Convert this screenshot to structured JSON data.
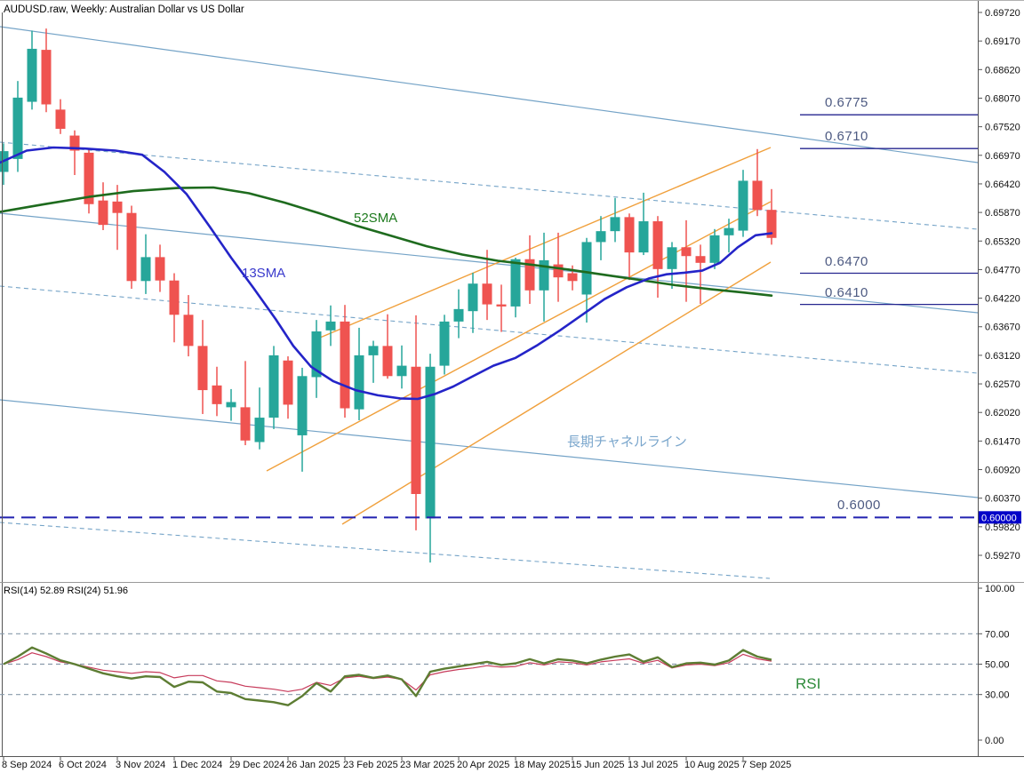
{
  "window": {
    "title": "AUDUSD.raw, Weekly:  Australian Dollar vs US Dollar"
  },
  "colors": {
    "background": "#ffffff",
    "bull_candle": "#26a69a",
    "bear_candle": "#ef5350",
    "sma13": "#2424c8",
    "sma52": "#1e6b1e",
    "channel_blue": "#74a3c7",
    "channel_orange": "#f0a03c",
    "level_navy": "#26268f",
    "level_dashed_navy": "#2222b0",
    "level_label": "#4d5a82",
    "channel_label": "#7aa6cc",
    "rsi14_line": "#5d7d33",
    "rsi24_line": "#c73b5b",
    "rsi_grid": "#8899aa",
    "price_tag_bg": "#0000c8",
    "price_tag_text": "#ffffff",
    "axis_text": "#111111",
    "border": "#555555"
  },
  "overlays": {
    "sma52_label": "52SMA",
    "sma13_label": "13SMA",
    "channel_label": "長期チャネルライン",
    "rsi_label": "RSI",
    "levels": [
      {
        "label": "0.6775",
        "price": 0.6775,
        "style": "solid",
        "full_width": false
      },
      {
        "label": "0.6710",
        "price": 0.671,
        "style": "solid",
        "full_width": false
      },
      {
        "label": "0.6470",
        "price": 0.647,
        "style": "solid",
        "full_width": false
      },
      {
        "label": "0.6410",
        "price": 0.641,
        "style": "solid",
        "full_width": false
      },
      {
        "label": "0.6000",
        "price": 0.6,
        "style": "dashed",
        "full_width": true
      }
    ],
    "price_tag": {
      "label": "0.60000",
      "price": 0.6
    }
  },
  "chart_data": {
    "type": "candlestick",
    "symbol": "AUDUSD.raw",
    "timeframe": "Weekly",
    "title": "AUDUSD.raw, Weekly:  Australian Dollar vs US Dollar",
    "price_axis": {
      "tick_labels": [
        "0.69720",
        "0.69170",
        "0.68620",
        "0.68070",
        "0.67520",
        "0.66970",
        "0.66420",
        "0.65870",
        "0.65320",
        "0.64770",
        "0.64220",
        "0.63670",
        "0.63120",
        "0.62570",
        "0.62020",
        "0.61470",
        "0.60920",
        "0.60370",
        "0.59820",
        "0.59270"
      ],
      "top": 0.6972,
      "bottom": 0.5927,
      "step": 0.0055
    },
    "x_axis": {
      "labels": [
        "8 Sep 2024",
        "6 Oct 2024",
        "3 Nov 2024",
        "1 Dec 2024",
        "29 Dec 2024",
        "26 Jan 2025",
        "23 Feb 2025",
        "23 Mar 2025",
        "20 Apr 2025",
        "18 May 2025",
        "15 Jun 2025",
        "13 Jul 2025",
        "10 Aug 2025",
        "7 Sep 2025"
      ],
      "candles_per_label": 4
    },
    "candles_ohlc": [
      [
        0.6665,
        0.672,
        0.664,
        0.6705
      ],
      [
        0.669,
        0.684,
        0.6665,
        0.6808
      ],
      [
        0.68,
        0.6937,
        0.6785,
        0.6902
      ],
      [
        0.69,
        0.6941,
        0.678,
        0.6795
      ],
      [
        0.6785,
        0.6805,
        0.6738,
        0.6748
      ],
      [
        0.6735,
        0.6745,
        0.6659,
        0.6706
      ],
      [
        0.6702,
        0.671,
        0.6585,
        0.6603
      ],
      [
        0.661,
        0.6645,
        0.6553,
        0.6563
      ],
      [
        0.6608,
        0.664,
        0.6515,
        0.6586
      ],
      [
        0.6586,
        0.66,
        0.644,
        0.6455
      ],
      [
        0.6455,
        0.6545,
        0.643,
        0.6501
      ],
      [
        0.6501,
        0.6525,
        0.6434,
        0.6456
      ],
      [
        0.6456,
        0.647,
        0.6337,
        0.639
      ],
      [
        0.639,
        0.6428,
        0.631,
        0.633
      ],
      [
        0.633,
        0.638,
        0.6199,
        0.6245
      ],
      [
        0.6254,
        0.629,
        0.6195,
        0.6218
      ],
      [
        0.6212,
        0.6247,
        0.6186,
        0.6222
      ],
      [
        0.6212,
        0.6301,
        0.6139,
        0.6148
      ],
      [
        0.6145,
        0.625,
        0.6131,
        0.6192
      ],
      [
        0.6192,
        0.633,
        0.617,
        0.6312
      ],
      [
        0.6302,
        0.631,
        0.619,
        0.6217
      ],
      [
        0.6158,
        0.6288,
        0.6088,
        0.6272
      ],
      [
        0.627,
        0.638,
        0.623,
        0.6358
      ],
      [
        0.636,
        0.6408,
        0.633,
        0.6377
      ],
      [
        0.6377,
        0.6409,
        0.6192,
        0.621
      ],
      [
        0.6208,
        0.6365,
        0.6187,
        0.6312
      ],
      [
        0.6312,
        0.634,
        0.6259,
        0.633
      ],
      [
        0.633,
        0.6391,
        0.6267,
        0.6272
      ],
      [
        0.6272,
        0.6331,
        0.6248,
        0.6292
      ],
      [
        0.629,
        0.6389,
        0.5975,
        0.6045
      ],
      [
        0.5998,
        0.6315,
        0.5913,
        0.629
      ],
      [
        0.6292,
        0.639,
        0.6275,
        0.6377
      ],
      [
        0.6377,
        0.6439,
        0.6345,
        0.6401
      ],
      [
        0.6397,
        0.6471,
        0.6355,
        0.645
      ],
      [
        0.645,
        0.6515,
        0.638,
        0.641
      ],
      [
        0.641,
        0.6448,
        0.6357,
        0.6406
      ],
      [
        0.6406,
        0.65,
        0.6385,
        0.6497
      ],
      [
        0.6497,
        0.6543,
        0.6411,
        0.6437
      ],
      [
        0.6437,
        0.6548,
        0.6377,
        0.6495
      ],
      [
        0.6487,
        0.6548,
        0.6415,
        0.6462
      ],
      [
        0.647,
        0.6485,
        0.6437,
        0.6455
      ],
      [
        0.6429,
        0.6538,
        0.6375,
        0.653
      ],
      [
        0.653,
        0.658,
        0.6495,
        0.6551
      ],
      [
        0.6551,
        0.6615,
        0.653,
        0.6578
      ],
      [
        0.6578,
        0.6585,
        0.6457,
        0.651
      ],
      [
        0.651,
        0.6625,
        0.6505,
        0.657
      ],
      [
        0.657,
        0.658,
        0.6423,
        0.6478
      ],
      [
        0.6478,
        0.653,
        0.644,
        0.652
      ],
      [
        0.652,
        0.6572,
        0.6415,
        0.6503
      ],
      [
        0.6503,
        0.6525,
        0.6411,
        0.649
      ],
      [
        0.649,
        0.6555,
        0.6478,
        0.6543
      ],
      [
        0.6543,
        0.6575,
        0.651,
        0.6557
      ],
      [
        0.6552,
        0.6669,
        0.654,
        0.6648
      ],
      [
        0.6648,
        0.6709,
        0.658,
        0.6592
      ],
      [
        0.6592,
        0.6632,
        0.6525,
        0.6538
      ]
    ],
    "sma13": {
      "name": "13SMA",
      "points": [
        [
          0,
          0.6683
        ],
        [
          30,
          0.6706
        ],
        [
          60,
          0.6712
        ],
        [
          95,
          0.671
        ],
        [
          130,
          0.6706
        ],
        [
          160,
          0.6698
        ],
        [
          185,
          0.6665
        ],
        [
          210,
          0.6622
        ],
        [
          235,
          0.6562
        ],
        [
          260,
          0.65
        ],
        [
          285,
          0.6442
        ],
        [
          310,
          0.6382
        ],
        [
          330,
          0.633
        ],
        [
          350,
          0.629
        ],
        [
          375,
          0.6262
        ],
        [
          400,
          0.6245
        ],
        [
          425,
          0.6235
        ],
        [
          450,
          0.6229
        ],
        [
          470,
          0.6228
        ],
        [
          490,
          0.6238
        ],
        [
          510,
          0.6252
        ],
        [
          530,
          0.627
        ],
        [
          555,
          0.6292
        ],
        [
          580,
          0.6307
        ],
        [
          605,
          0.6332
        ],
        [
          630,
          0.636
        ],
        [
          655,
          0.639
        ],
        [
          680,
          0.642
        ],
        [
          705,
          0.6443
        ],
        [
          730,
          0.646
        ],
        [
          750,
          0.6468
        ],
        [
          770,
          0.6471
        ],
        [
          790,
          0.6475
        ],
        [
          810,
          0.649
        ],
        [
          830,
          0.652
        ],
        [
          850,
          0.6543
        ],
        [
          868,
          0.6547
        ]
      ]
    },
    "sma52": {
      "name": "52SMA",
      "points": [
        [
          0,
          0.6588
        ],
        [
          50,
          0.6603
        ],
        [
          100,
          0.6617
        ],
        [
          150,
          0.6628
        ],
        [
          200,
          0.6634
        ],
        [
          240,
          0.6635
        ],
        [
          280,
          0.6624
        ],
        [
          320,
          0.6606
        ],
        [
          360,
          0.6585
        ],
        [
          400,
          0.6562
        ],
        [
          440,
          0.6542
        ],
        [
          480,
          0.6522
        ],
        [
          520,
          0.6506
        ],
        [
          560,
          0.6494
        ],
        [
          600,
          0.6486
        ],
        [
          640,
          0.6477
        ],
        [
          680,
          0.6467
        ],
        [
          720,
          0.6457
        ],
        [
          760,
          0.6447
        ],
        [
          800,
          0.6439
        ],
        [
          835,
          0.6433
        ],
        [
          868,
          0.6427
        ]
      ]
    },
    "trend_lines": {
      "blue_solid": [
        [
          0,
          30,
          1100,
          183
        ],
        [
          0,
          240,
          1100,
          352
        ],
        [
          0,
          450,
          1100,
          560
        ]
      ],
      "blue_dashed": [
        [
          0,
          160,
          1100,
          258
        ],
        [
          0,
          322,
          1100,
          420
        ],
        [
          0,
          588,
          866,
          651
        ]
      ],
      "orange_solid": [
        [
          360,
          380,
          867,
          166
        ],
        [
          300,
          530,
          867,
          227
        ],
        [
          385,
          590,
          867,
          295
        ]
      ]
    },
    "rsi_panel": {
      "header": "RSI(14) 52.89 RSI(24) 51.96",
      "axis_tick_labels": [
        "100.00",
        "70.00",
        "50.00",
        "30.00",
        "0.00"
      ],
      "axis_tick_values": [
        100,
        70,
        50,
        30,
        0
      ],
      "gridlines": [
        70,
        50,
        30
      ],
      "series": [
        {
          "name": "RSI(14)",
          "last_value": 52.89,
          "color_key": "rsi14_line",
          "values": [
            50,
            55,
            61,
            57,
            52.5,
            50,
            47,
            44,
            42,
            40.5,
            42,
            41.5,
            35,
            38.5,
            38,
            32,
            31,
            27,
            26,
            25,
            23,
            29,
            37.5,
            32,
            42,
            43,
            41,
            42.5,
            40,
            29,
            45,
            47,
            48.5,
            50,
            51.5,
            49.5,
            50.5,
            53.3,
            50.5,
            53.3,
            52.4,
            50.5,
            53,
            55,
            56.4,
            51.6,
            54.5,
            48,
            50.5,
            51,
            49.7,
            52.4,
            59.3,
            55,
            52.89
          ]
        },
        {
          "name": "RSI(24)",
          "last_value": 51.96,
          "color_key": "rsi24_line",
          "values": [
            50,
            53,
            57.5,
            55,
            51.5,
            50,
            48,
            46,
            45,
            44,
            45,
            44.5,
            41,
            42.5,
            42.5,
            39,
            38,
            35.5,
            34.5,
            33.5,
            32,
            33.5,
            38,
            36,
            41,
            42,
            40.5,
            41.5,
            40,
            33,
            43,
            45,
            46.5,
            47.5,
            49,
            48,
            48.5,
            51,
            49.5,
            51.5,
            51,
            49.5,
            51.5,
            52.5,
            53.5,
            50.5,
            52.5,
            47.5,
            49.5,
            50,
            49,
            51,
            56.5,
            53.5,
            51.96
          ]
        }
      ]
    }
  }
}
